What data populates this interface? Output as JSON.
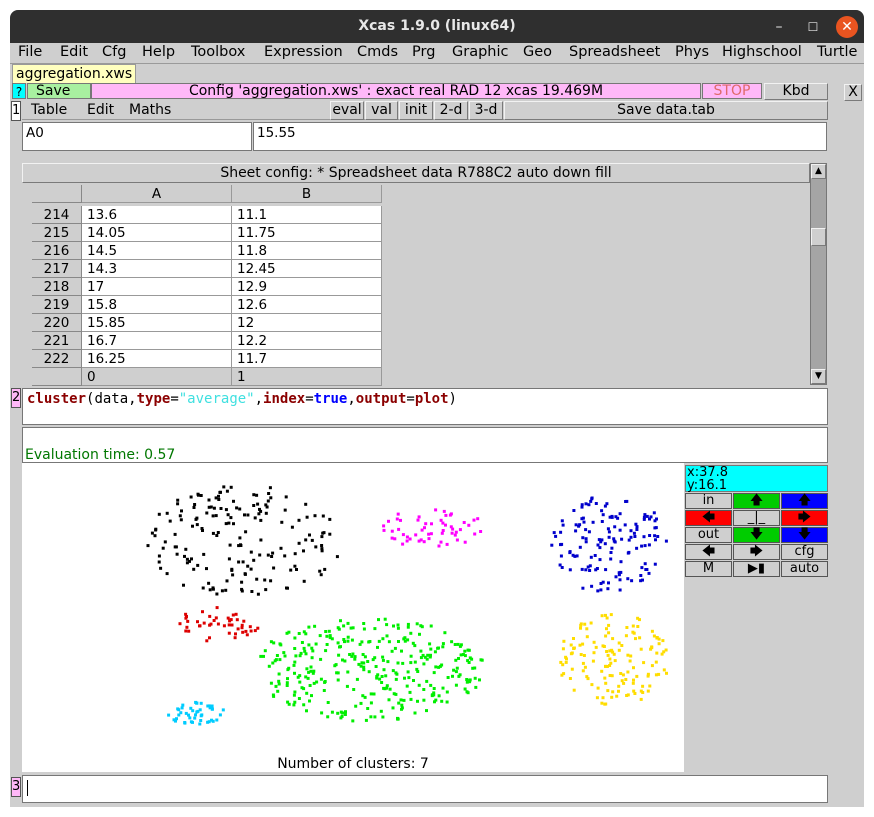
{
  "window": {
    "title": "Xcas 1.9.0 (linux64)"
  },
  "menu": [
    "File",
    "Edit",
    "Cfg",
    "Help",
    "Toolbox",
    "Expression",
    "Cmds",
    "Prg",
    "Graphic",
    "Geo",
    "Spreadsheet",
    "Phys",
    "Highschool",
    "Turtle"
  ],
  "tab": {
    "label": "aggregation.xws"
  },
  "toolbar": {
    "help": "?",
    "save": "Save",
    "config": "Config 'aggregation.xws' : exact real RAD 12 xcas 19.469M",
    "stop": "STOP",
    "kbd": "Kbd",
    "close": "X"
  },
  "level1": {
    "number": "1",
    "menu": [
      "Table",
      "Edit",
      "Maths"
    ],
    "buttons": [
      "eval",
      "val",
      "init",
      "2-d",
      "3-d"
    ],
    "save_data": "Save data.tab",
    "cell_name": "A0",
    "cell_value": "15.55",
    "sheet_config": "Sheet config: * Spreadsheet data R788C2 auto down fill",
    "columns": [
      "A",
      "B"
    ],
    "rows": [
      {
        "n": "214",
        "a": "13.6",
        "b": "11.1"
      },
      {
        "n": "215",
        "a": "14.05",
        "b": "11.75"
      },
      {
        "n": "216",
        "a": "14.5",
        "b": "11.8"
      },
      {
        "n": "217",
        "a": "14.3",
        "b": "12.45"
      },
      {
        "n": "218",
        "a": "17",
        "b": "12.9"
      },
      {
        "n": "219",
        "a": "15.8",
        "b": "12.6"
      },
      {
        "n": "220",
        "a": "15.85",
        "b": "12"
      },
      {
        "n": "221",
        "a": "16.7",
        "b": "12.2"
      },
      {
        "n": "222",
        "a": "16.25",
        "b": "11.7"
      }
    ],
    "footer": [
      "0",
      "1"
    ]
  },
  "level2": {
    "number": "2",
    "command": {
      "fn": "cluster",
      "p1": "(data,",
      "k1": "type",
      "eq1": "=",
      "s1": "\"average\"",
      "c1": ",",
      "k2": "index",
      "eq2": "=",
      "v2": "true",
      "c2": ",",
      "k3": "output",
      "eq3": "=",
      "v3": "plot",
      "end": ")"
    },
    "eval_time": "Evaluation time: 0.57",
    "plot_caption": "Number of clusters: 7",
    "coords": {
      "x": "x:37.8",
      "y": "y:16.1"
    },
    "graph_buttons": {
      "in": "in",
      "out": "out",
      "cfg": "cfg",
      "m": "M",
      "auto": "auto",
      "center": "_|_"
    }
  },
  "level3": {
    "number": "3",
    "input": ""
  },
  "colors": {
    "title_bg": "#2f2f2f",
    "panel": "#cfcfcf",
    "save_green": "#a8f0a0",
    "config_pink": "#ffb8f8",
    "cyan": "#00ffff",
    "command_fn": "#8b0000",
    "command_string": "#40e0e0",
    "command_bool": "#0000ff",
    "eval_green": "#007700",
    "clusters": [
      "#000000",
      "#ff00ff",
      "#0000cc",
      "#dd0000",
      "#00ee00",
      "#00ccff",
      "#ffdd00"
    ]
  }
}
